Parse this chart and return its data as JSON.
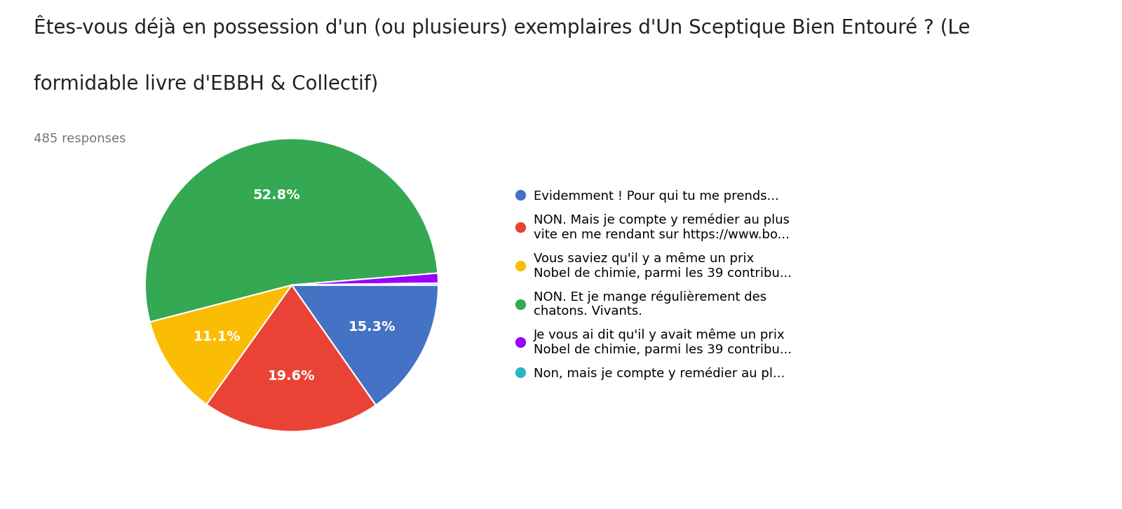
{
  "title_line1": "Êtes-vous déjà en possession d'un (ou plusieurs) exemplaires d'Un Sceptique Bien Entouré ? (Le",
  "title_line2": "formidable livre d'EBBH & Collectif)",
  "responses": "485 responses",
  "slices": [
    15.3,
    19.6,
    11.1,
    52.8,
    1.1,
    0.2
  ],
  "labels_pct": [
    "15.3%",
    "19.6%",
    "11.1%",
    "52.8%",
    "",
    ""
  ],
  "colors": [
    "#4472C4",
    "#EA4335",
    "#FBBC04",
    "#34A853",
    "#9900FF",
    "#29B6C5"
  ],
  "legend_labels": [
    "Evidemment ! Pour qui tu me prends...",
    "NON. Mais je compte y remédier au plus\nvite en me rendant sur https://www.bo...",
    "Vous saviez qu'il y a même un prix\nNobel de chimie, parmi les 39 contribu...",
    "NON. Et je mange régulièrement des\nchatons. Vivants.",
    "Je vous ai dit qu'il y avait même un prix\nNobel de chimie, parmi les 39 contribu...",
    "Non, mais je compte y remédier au pl..."
  ],
  "background_color": "#ffffff",
  "title_fontsize": 20,
  "responses_fontsize": 13,
  "legend_fontsize": 13,
  "pct_fontsize": 14
}
